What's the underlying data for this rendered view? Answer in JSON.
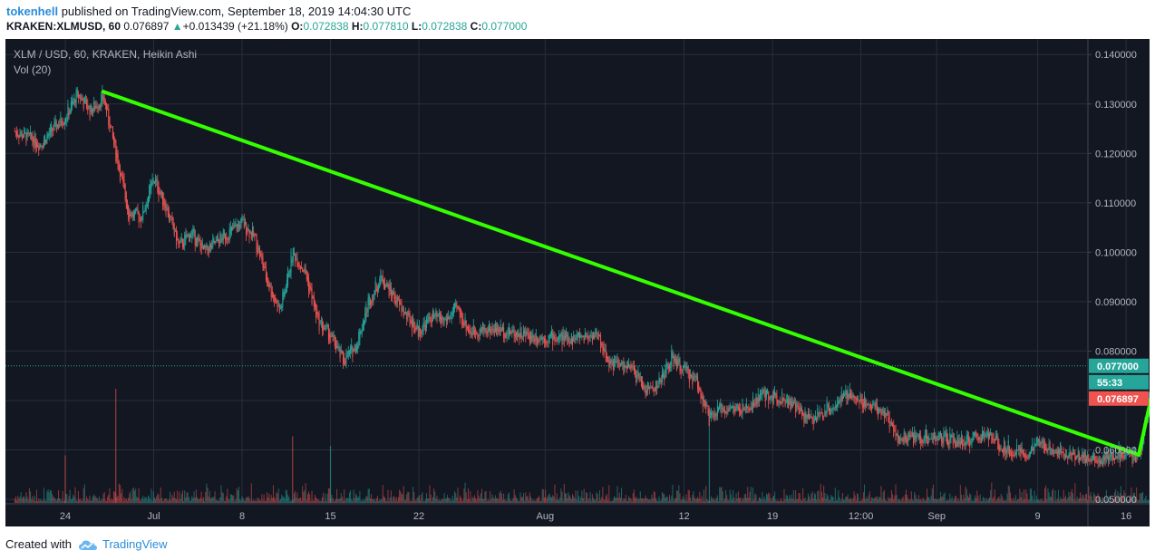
{
  "header": {
    "username": "tokenhell",
    "published_text": "published on TradingView.com, September 18, 2019 14:04:30 UTC",
    "symbol": "KRAKEN:XLMUSD, 60",
    "last": "0.076897",
    "change_arrow": "▲",
    "change": "+0.013439 (+21.18%)",
    "o_label": "O:",
    "o_value": "0.072838",
    "h_label": "H:",
    "h_value": "0.077810",
    "l_label": "L:",
    "l_value": "0.072838",
    "c_label": "C:",
    "c_value": "0.077000"
  },
  "legend": {
    "title": "XLM / USD, 60, KRAKEN, Heikin Ashi",
    "volume": "Vol (20)"
  },
  "footer": {
    "created_with": "Created with",
    "brand": "TradingView",
    "logo_icon": "tradingview-cloud-icon"
  },
  "colors": {
    "background": "#131722",
    "grid": "#2a2e39",
    "up": "#26a69a",
    "down": "#ef5350",
    "trendline": "#33ff00",
    "axis_text": "#b2b5be"
  },
  "chart_data": {
    "type": "candlestick",
    "chart_style": "Heikin Ashi",
    "ylim": [
      0.05,
      0.14
    ],
    "y_ticks": [
      "0.140000",
      "0.130000",
      "0.120000",
      "0.110000",
      "0.100000",
      "0.090000",
      "0.080000",
      "0.070000",
      "0.060000",
      "0.050000"
    ],
    "x_ticks": [
      "24",
      "Jul",
      "8",
      "15",
      "22",
      "Aug",
      "12",
      "19",
      "12:00",
      "Sep",
      "9",
      "16"
    ],
    "x_tick_dates": [
      "2019-06-24",
      "2019-07-01",
      "2019-07-08",
      "2019-07-15",
      "2019-07-22",
      "2019-08-01",
      "2019-08-12",
      "2019-08-19",
      "2019-08-26",
      "2019-09-01",
      "2019-09-09",
      "2019-09-16"
    ],
    "price_path": [
      [
        "2019-06-20",
        0.1245
      ],
      [
        "2019-06-22",
        0.122
      ],
      [
        "2019-06-24",
        0.1275
      ],
      [
        "2019-06-25",
        0.132
      ],
      [
        "2019-06-26",
        0.1285
      ],
      [
        "2019-06-27",
        0.1315
      ],
      [
        "2019-06-28",
        0.12
      ],
      [
        "2019-06-29",
        0.108
      ],
      [
        "2019-06-30",
        0.107
      ],
      [
        "2019-07-01",
        0.115
      ],
      [
        "2019-07-02",
        0.109
      ],
      [
        "2019-07-03",
        0.101
      ],
      [
        "2019-07-04",
        0.104
      ],
      [
        "2019-07-05",
        0.1
      ],
      [
        "2019-07-07",
        0.104
      ],
      [
        "2019-07-08",
        0.106
      ],
      [
        "2019-07-09",
        0.103
      ],
      [
        "2019-07-10",
        0.094
      ],
      [
        "2019-07-11",
        0.088
      ],
      [
        "2019-07-12",
        0.1
      ],
      [
        "2019-07-13",
        0.096
      ],
      [
        "2019-07-14",
        0.086
      ],
      [
        "2019-07-15",
        0.083
      ],
      [
        "2019-07-16",
        0.078
      ],
      [
        "2019-07-17",
        0.081
      ],
      [
        "2019-07-18",
        0.09
      ],
      [
        "2019-07-19",
        0.095
      ],
      [
        "2019-07-20",
        0.091
      ],
      [
        "2019-07-21",
        0.087
      ],
      [
        "2019-07-22",
        0.084
      ],
      [
        "2019-07-23",
        0.087
      ],
      [
        "2019-07-24",
        0.086
      ],
      [
        "2019-07-25",
        0.0885
      ],
      [
        "2019-07-26",
        0.084
      ],
      [
        "2019-07-28",
        0.0845
      ],
      [
        "2019-07-31",
        0.083
      ],
      [
        "2019-08-03",
        0.0825
      ],
      [
        "2019-08-05",
        0.0835
      ],
      [
        "2019-08-06",
        0.078
      ],
      [
        "2019-08-08",
        0.076
      ],
      [
        "2019-08-09",
        0.072
      ],
      [
        "2019-08-10",
        0.0735
      ],
      [
        "2019-08-11",
        0.0785
      ],
      [
        "2019-08-12",
        0.076
      ],
      [
        "2019-08-13",
        0.074
      ],
      [
        "2019-08-14",
        0.066
      ],
      [
        "2019-08-15",
        0.0685
      ],
      [
        "2019-08-17",
        0.068
      ],
      [
        "2019-08-18",
        0.071
      ],
      [
        "2019-08-20",
        0.0705
      ],
      [
        "2019-08-21",
        0.068
      ],
      [
        "2019-08-22",
        0.066
      ],
      [
        "2019-08-24",
        0.0695
      ],
      [
        "2019-08-25",
        0.071
      ],
      [
        "2019-08-27",
        0.069
      ],
      [
        "2019-08-28",
        0.067
      ],
      [
        "2019-08-29",
        0.062
      ],
      [
        "2019-08-30",
        0.0625
      ],
      [
        "2019-09-01",
        0.0625
      ],
      [
        "2019-09-03",
        0.0615
      ],
      [
        "2019-09-05",
        0.063
      ],
      [
        "2019-09-06",
        0.061
      ],
      [
        "2019-09-08",
        0.059
      ],
      [
        "2019-09-09",
        0.061
      ],
      [
        "2019-09-10",
        0.0605
      ],
      [
        "2019-09-12",
        0.059
      ],
      [
        "2019-09-14",
        0.058
      ],
      [
        "2019-09-15",
        0.059
      ],
      [
        "2019-09-17",
        0.0585
      ],
      [
        "2019-09-17T12:00",
        0.065
      ],
      [
        "2019-09-18",
        0.073
      ],
      [
        "2019-09-18T14:00",
        0.077
      ]
    ],
    "volume_spikes": [
      [
        "2019-06-28",
        0.6
      ],
      [
        "2019-08-14",
        0.5
      ],
      [
        "2019-07-12",
        0.35
      ],
      [
        "2019-07-15",
        0.3
      ],
      [
        "2019-06-24",
        0.25
      ],
      [
        "2019-09-18",
        0.15
      ]
    ],
    "trendlines": [
      {
        "from": [
          "2019-06-27",
          0.1325
        ],
        "to": [
          "2019-09-17",
          0.059
        ]
      },
      {
        "from": [
          "2019-09-17",
          0.059
        ],
        "to": [
          "2019-09-18T14:00",
          0.0775
        ]
      }
    ],
    "last_price_line": 0.077,
    "price_labels": {
      "close": "0.077000",
      "countdown": "55:33",
      "last": "0.076897"
    }
  }
}
